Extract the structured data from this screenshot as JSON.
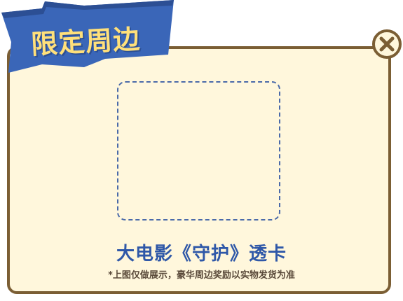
{
  "banner": {
    "title": "限定周边"
  },
  "close": {
    "icon": "close-icon"
  },
  "item": {
    "title": "大电影《守护》透卡",
    "disclaimer": "*上图仅做展示，豪华周边奖励以实物发货为准"
  },
  "colors": {
    "banner_blue": "#3a66b8",
    "banner_text": "#ffe07a",
    "card_bg": "#fff7dc",
    "card_border": "#7b5e34",
    "title_blue": "#2f58a8"
  }
}
